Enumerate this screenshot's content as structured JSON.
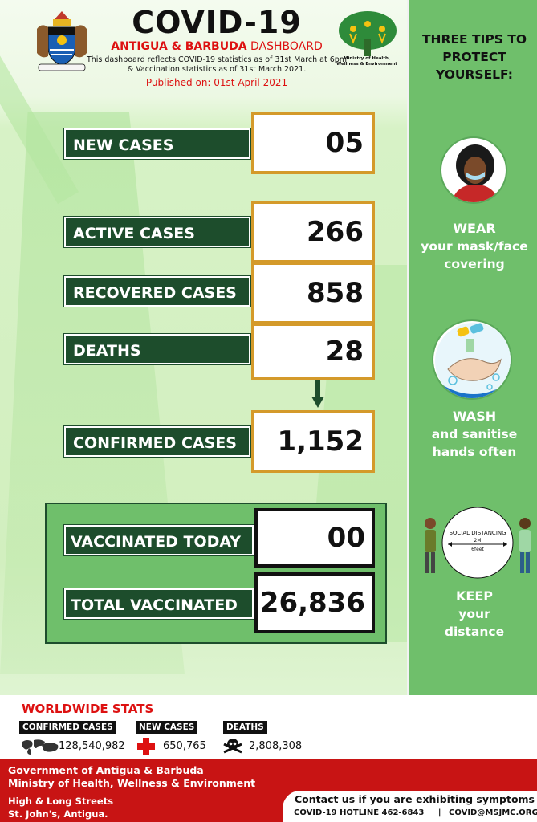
{
  "header": {
    "title": "COVID-19",
    "subtitle_country": "ANTIGUA & BARBUDA",
    "subtitle_rest": " DASHBOARD",
    "note_line1": "This dashboard reflects COVID-19 statistics as of 31st  March at 6pm",
    "note_line2": "& Vaccination statistics as of 31st March 2021.",
    "published": "Published on: 01st April 2021",
    "ministry_logo_line1": "Ministry of Health,",
    "ministry_logo_line2": "Wellness & Environment"
  },
  "stats": {
    "new_cases_label": "NEW CASES",
    "new_cases_value": "05",
    "active_label": "ACTIVE CASES",
    "active_value": "266",
    "recovered_label": "RECOVERED CASES",
    "recovered_value": "858",
    "deaths_label": "DEATHS",
    "deaths_value": "28",
    "confirmed_label": "CONFIRMED CASES",
    "confirmed_value": "1,152"
  },
  "vaccination": {
    "today_label": "VACCINATED TODAY",
    "today_value": "00",
    "total_label": "TOTAL VACCINATED",
    "total_value": "26,836"
  },
  "sidebar": {
    "title_line1": "THREE TIPS TO",
    "title_line2": "PROTECT",
    "title_line3": "YOURSELF:",
    "tip1_line1": "WEAR",
    "tip1_line2": "your mask/face",
    "tip1_line3": "covering",
    "tip2_line1": "WASH",
    "tip2_line2": "and sanitise",
    "tip2_line3": "hands often",
    "tip3_line1": "KEEP",
    "tip3_line2": "your",
    "tip3_line3": "distance",
    "distancing_sign": "SOCIAL DISTANCING",
    "distancing_m": "2M",
    "distancing_ft": "6feet"
  },
  "worldwide": {
    "title": "WORLDWIDE STATS",
    "confirmed_label": "CONFIRMED CASES",
    "confirmed_value": "128,540,982",
    "new_label": "NEW CASES",
    "new_value": "650,765",
    "deaths_label": "DEATHS",
    "deaths_value": "2,808,308"
  },
  "footer": {
    "gov_line1": "Government of Antigua & Barbuda",
    "gov_line2": "Ministry of Health, Wellness & Environment",
    "addr_line1": "High & Long Streets",
    "addr_line2": "St. John's, Antigua.",
    "contact_title": "Contact us if you are exhibiting symptoms",
    "hotline": "COVID-19 HOTLINE 462-6843",
    "separator": "|",
    "email": "COVID@MSJMC.ORG"
  },
  "colors": {
    "dark_green": "#1d4d2c",
    "sidebar_green": "#6fbf6b",
    "orange_border": "#d49a2a",
    "red": "#c81414"
  }
}
